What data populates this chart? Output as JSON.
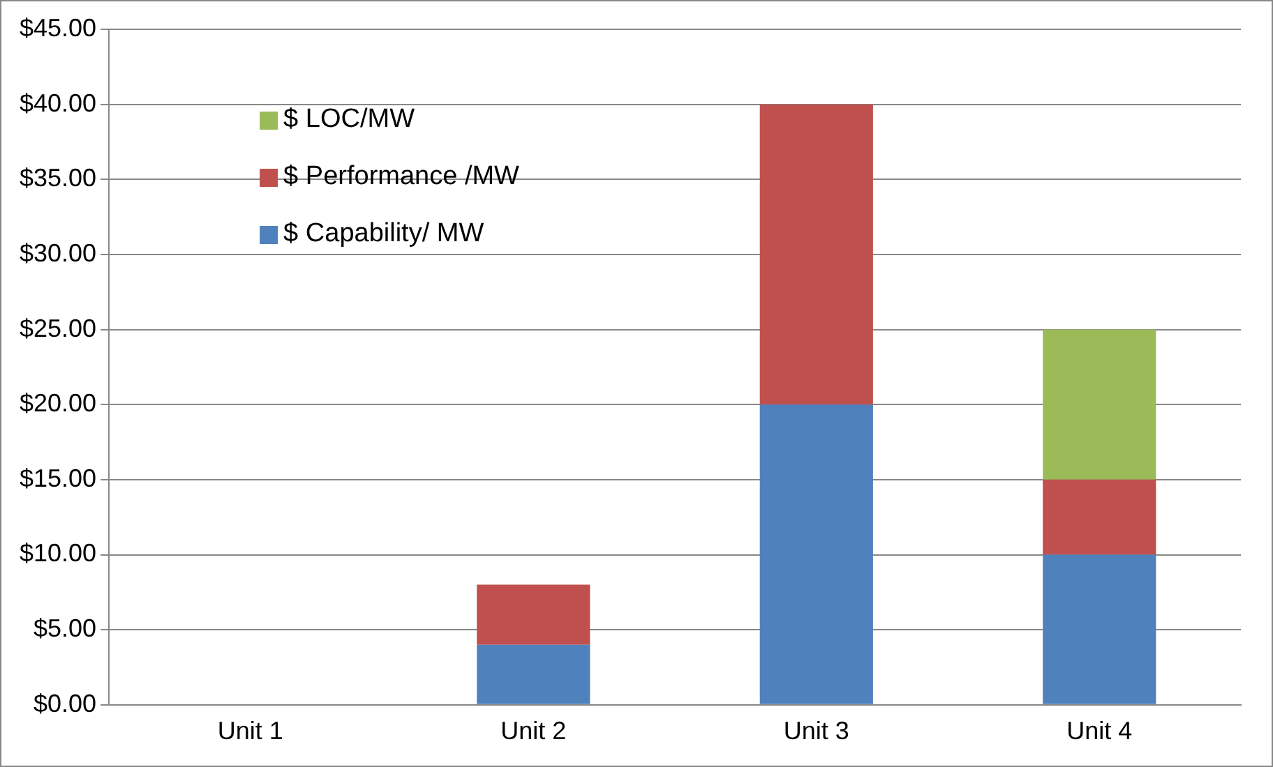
{
  "chart_data": {
    "type": "bar",
    "stacked": true,
    "categories": [
      "Unit 1",
      "Unit 2",
      "Unit 3",
      "Unit 4"
    ],
    "series": [
      {
        "name": "$ Capability/ MW",
        "color": "#4f81bd",
        "values": [
          0,
          4,
          20,
          10
        ]
      },
      {
        "name": "$ Performance /MW",
        "color": "#c0504d",
        "values": [
          0,
          4,
          20,
          5
        ]
      },
      {
        "name": "$ LOC/MW",
        "color": "#9bbb59",
        "values": [
          0,
          0,
          0,
          10
        ]
      }
    ],
    "ylim": [
      0,
      45
    ],
    "yticks": [
      {
        "value": 0,
        "label": "$0.00"
      },
      {
        "value": 5,
        "label": "$5.00"
      },
      {
        "value": 10,
        "label": "$10.00"
      },
      {
        "value": 15,
        "label": "$15.00"
      },
      {
        "value": 20,
        "label": "$20.00"
      },
      {
        "value": 25,
        "label": "$25.00"
      },
      {
        "value": 30,
        "label": "$30.00"
      },
      {
        "value": 35,
        "label": "$35.00"
      },
      {
        "value": 40,
        "label": "$40.00"
      },
      {
        "value": 45,
        "label": "$45.00"
      }
    ],
    "grid": "y",
    "legend": "top left"
  }
}
